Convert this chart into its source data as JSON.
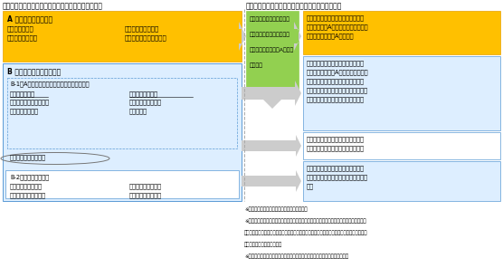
{
  "title_left": "》自動運行装置を使用せずに運転中の運転者の義務》",
  "title_right": "》自動運行装置を使用して運転中の運転者の義務》",
  "left_A_title": "A 運転操作に係る義務",
  "left_A_r1c1": "・安全運転義務",
  "left_A_r1c2": "・制限速度遵守義務",
  "left_A_r2c1": "・信号等遵守義務",
  "left_A_r2c2": "・車間距離保持義務　等",
  "left_B_title": "B 運転操作以外に係る義務",
  "left_B1_title": "B-1）Aの安定した履行を確保するための義務",
  "left_B1_c1_l1": "・無線通話装置",
  "left_B1_c1_l2": "（例：携帯電話）の保持",
  "left_B1_c1_l3": "による通話の禁止",
  "left_B1_c2_l1": "・画像表示用装置",
  "left_B1_c2_l2": "（例：カーナビ）の",
  "left_B1_c2_l3": "注視の禁止",
  "left_B1_extra": "・飲酒運転の禁止　等",
  "left_B2_title": "B-2）　その他の義務",
  "left_B2_c1_l1": "・事故時の救護義務",
  "left_B2_c1_l2": "・運転免許証提示義務",
  "left_B2_c2_l1": "・故障時の停止表示",
  "left_B2_c2_l2": "器材表示義務　　等",
  "middle_line1": "使用条件内で自動運行装置",
  "middle_line2": "を適切に使用して運転する",
  "middle_line3": "場合、同装置が義務Aを自動",
  "middle_line4": "的に履行",
  "right_box1_l1": "自動運行装置を適切に使用すること",
  "right_box1_l2": "により、義務Aの履行が可能に（運転",
  "right_box1_l3": "者は引き続き義務Aを負う）",
  "right_box2_l1": "自動運行装置を適切に使用すること",
  "right_box2_l2": "により、従来義務Aの履行に必要とさ",
  "right_box2_l3": "れた運転者自身による常時監視や運",
  "right_box2_l4": "転操作は不要となるため、保持通話及",
  "right_box2_l5": "び画像注視の禁止規定の適用を除外",
  "right_box3_l1": "運転者自身が運転操作を引き継ぐ可",
  "right_box3_l2": "能性は常にあるため、引き続き禁止",
  "right_box4_l1": "自動運行装置が担う動的運転タスク",
  "right_box4_l2": "以外の義務であるため、引き続き義務",
  "right_box4_l3": "付け",
  "fn1": "※　自動運行装置の使用は使用条件内に限る。",
  "fn2": "※　運転者は、自動運行装置の使用中であっても、車両の故障や使用条件外となった場合、",
  "fn3": "　　直ちに、そのことを認知するとともに、確実に自らの運転操作に切り替えることができる",
  "fn4": "　　状態にある必要がある。",
  "fn5": "※　運転者等は、作動状態記録装置により必要な情報を記録する必要がある。",
  "color_orange": "#ffc000",
  "color_blue_bg": "#ddeeff",
  "color_blue_border": "#5b9bd5",
  "color_green": "#92d050",
  "color_gray": "#cccccc",
  "color_sep": "#aaaaaa"
}
